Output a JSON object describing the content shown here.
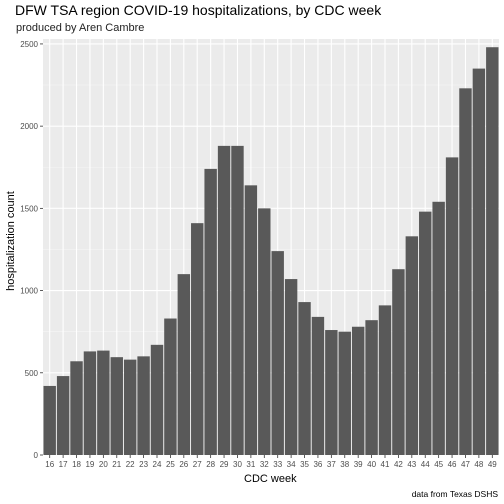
{
  "chart_data": {
    "type": "bar",
    "title": "DFW TSA region COVID-19 hospitalizations, by CDC week",
    "subtitle": "produced by Aren Cambre",
    "xlabel": "CDC week",
    "ylabel": "hospitalization count",
    "caption": "data from Texas DSHS",
    "categories": [
      "16",
      "17",
      "18",
      "19",
      "20",
      "21",
      "22",
      "23",
      "24",
      "25",
      "26",
      "27",
      "28",
      "29",
      "30",
      "31",
      "32",
      "33",
      "34",
      "35",
      "36",
      "37",
      "38",
      "39",
      "40",
      "41",
      "42",
      "43",
      "44",
      "45",
      "46",
      "47",
      "48",
      "49"
    ],
    "values": [
      420,
      480,
      570,
      630,
      635,
      595,
      580,
      600,
      670,
      830,
      1100,
      1410,
      1740,
      1880,
      1880,
      1640,
      1500,
      1240,
      1070,
      930,
      840,
      760,
      750,
      780,
      820,
      910,
      1130,
      1330,
      1480,
      1540,
      1810,
      2230,
      2350,
      2480
    ],
    "yticks": [
      0,
      500,
      1000,
      1500,
      2000,
      2500
    ],
    "ylim": [
      0,
      2530
    ],
    "grid": true,
    "colors": {
      "bar": "#595959",
      "panel": "#ebebeb",
      "grid_major": "#ffffff",
      "grid_minor": "#f5f5f5"
    }
  }
}
